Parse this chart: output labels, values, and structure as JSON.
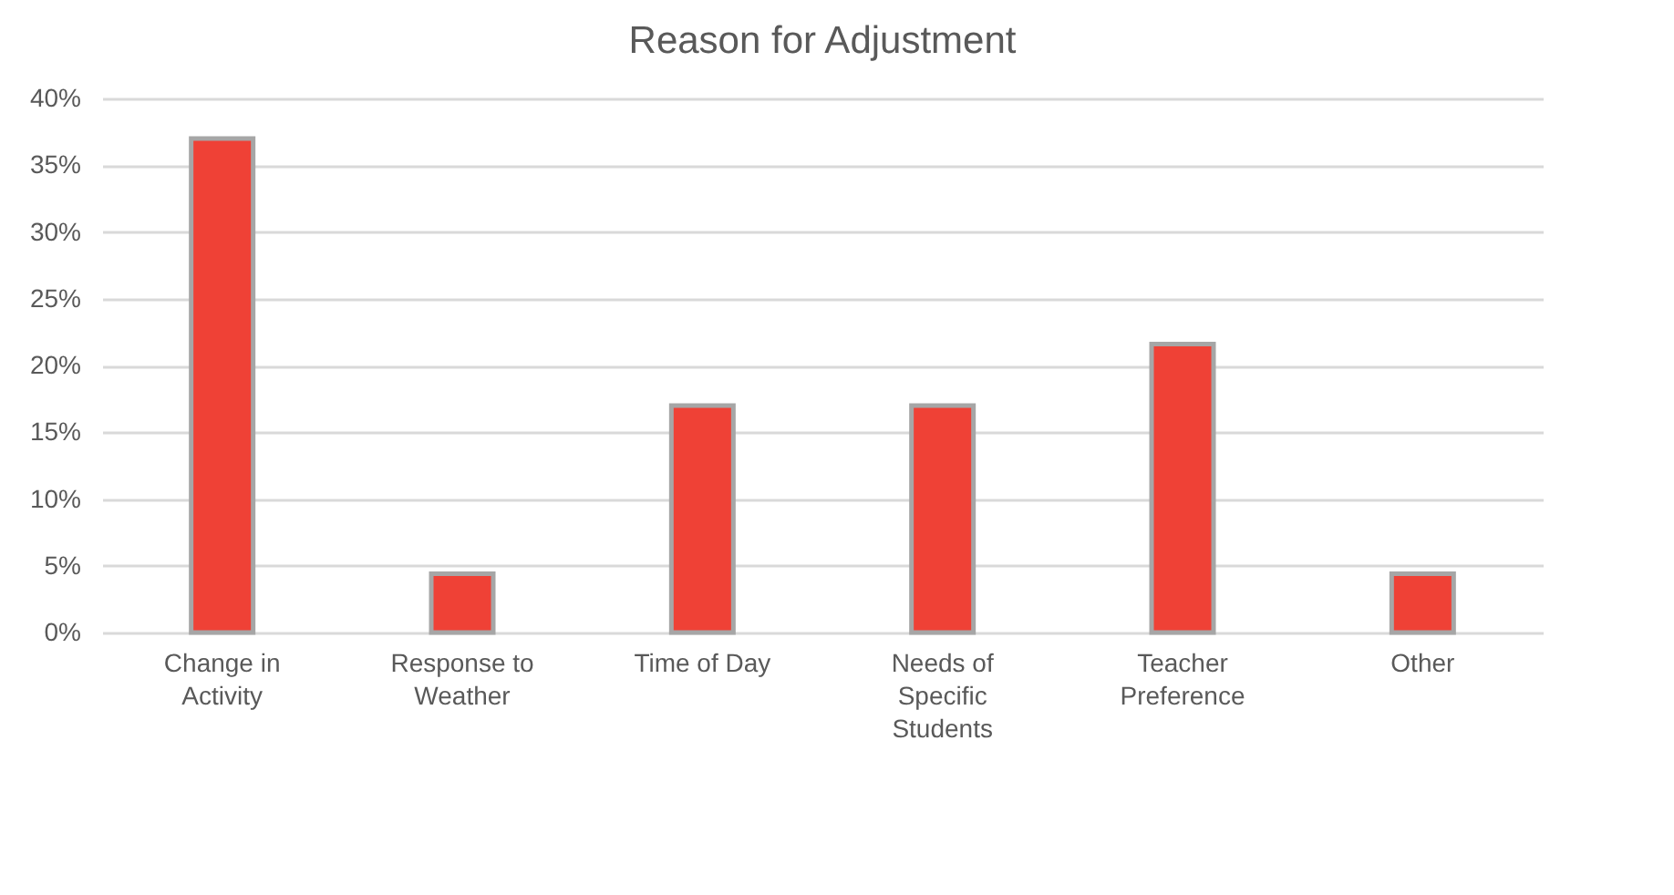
{
  "chart_data": {
    "type": "bar",
    "title": "Reason for Adjustment",
    "categories": [
      "Change in Activity",
      "Response to Weather",
      "Time of Day",
      "Needs of Specific Students",
      "Teacher Preference",
      "Other"
    ],
    "values": [
      37,
      4.4,
      17,
      17,
      21.6,
      4.4
    ],
    "color": "#ef4136",
    "ylim": [
      0,
      40
    ],
    "yticks": [
      {
        "value": 0,
        "label": "0%"
      },
      {
        "value": 5,
        "label": "5%"
      },
      {
        "value": 10,
        "label": "10%"
      },
      {
        "value": 15,
        "label": "15%"
      },
      {
        "value": 20,
        "label": "20%"
      },
      {
        "value": 25,
        "label": "25%"
      },
      {
        "value": 30,
        "label": "30%"
      },
      {
        "value": 35,
        "label": "35%"
      },
      {
        "value": 40,
        "label": "40%"
      }
    ],
    "grid": "y"
  }
}
